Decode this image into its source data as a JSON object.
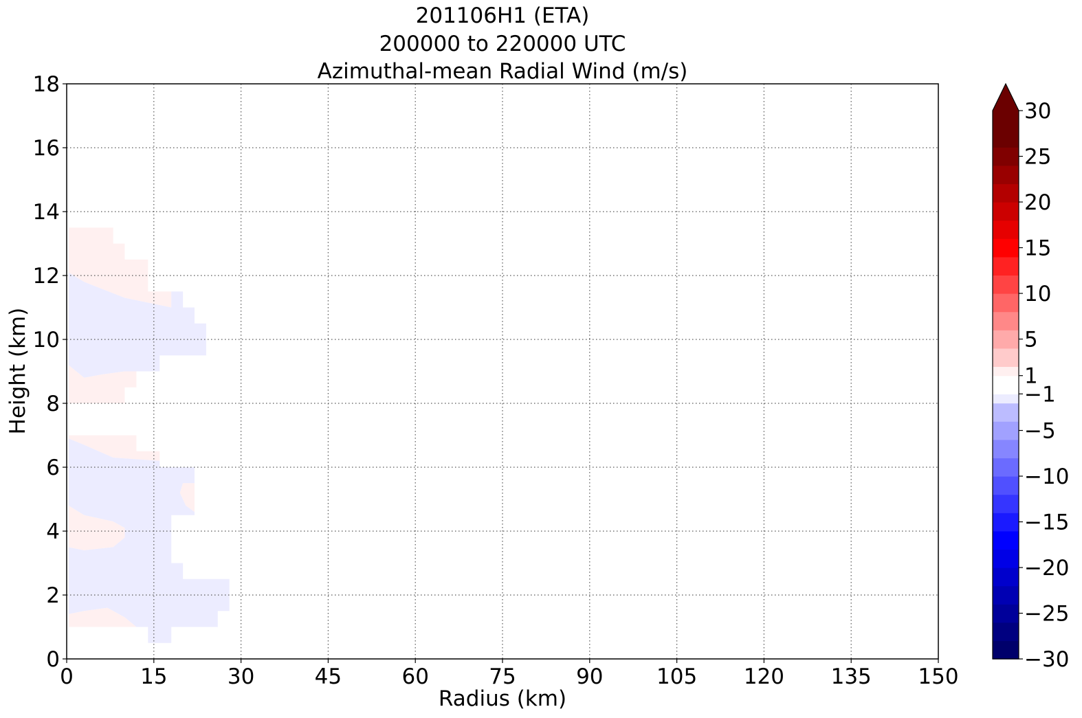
{
  "chart_data": {
    "type": "heatmap",
    "title_lines": [
      "201106H1 (ETA)",
      "200000 to 220000 UTC",
      "Azimuthal-mean Radial Wind (m/s)"
    ],
    "xlabel": "Radius (km)",
    "ylabel": "Height (km)",
    "xlim": [
      0,
      150
    ],
    "ylim": [
      0,
      18
    ],
    "xticks": [
      0,
      15,
      30,
      45,
      60,
      75,
      90,
      105,
      120,
      135,
      150
    ],
    "yticks": [
      0,
      2,
      4,
      6,
      8,
      10,
      12,
      14,
      16,
      18
    ],
    "grid": true,
    "colorbar": {
      "label": "",
      "range": [
        -30,
        30
      ],
      "levels": [
        -30,
        -28,
        -26,
        -24,
        -22,
        -20,
        -18,
        -16,
        -14,
        -12,
        -10,
        -8,
        -6,
        -4,
        -2,
        -1,
        1,
        2,
        4,
        6,
        8,
        10,
        12,
        14,
        16,
        18,
        20,
        22,
        24,
        26,
        28,
        30
      ],
      "colors": [
        "#00006b",
        "#000080",
        "#00009a",
        "#0000b3",
        "#0000cc",
        "#0000e6",
        "#0000ff",
        "#1a1aff",
        "#3535ff",
        "#5050ff",
        "#6b6bff",
        "#8686ff",
        "#a1a1ff",
        "#bcbcff",
        "#ececff",
        "#ffffff",
        "#fff0f0",
        "#ffcbcb",
        "#ffaaaa",
        "#ff8888",
        "#ff6666",
        "#ff4444",
        "#ff2222",
        "#ff0000",
        "#e60000",
        "#cc0000",
        "#b30000",
        "#990000",
        "#800000",
        "#6b0000",
        "#6b0000"
      ],
      "tick_values": [
        30,
        25,
        20,
        15,
        10,
        5,
        1,
        -1,
        -5,
        -10,
        -15,
        -20,
        -25,
        -30
      ],
      "tick_labels": [
        "30",
        "25",
        "20",
        "15",
        "10",
        "5",
        "1",
        "−1",
        "−5",
        "−10",
        "−15",
        "−20",
        "−25",
        "−30"
      ],
      "extend": "max"
    },
    "regions": [
      {
        "name": "weak outflow (1 to 2 m/s), upper level",
        "value_range": [
          1,
          2
        ],
        "color": "#fff0f0",
        "polygon": [
          [
            0.3,
            13.5
          ],
          [
            8,
            13.5
          ],
          [
            8,
            13
          ],
          [
            10,
            13
          ],
          [
            10,
            12.5
          ],
          [
            14,
            12.5
          ],
          [
            14,
            11.5
          ],
          [
            18,
            11.5
          ],
          [
            18,
            11
          ],
          [
            10,
            11.3
          ],
          [
            3,
            11.8
          ],
          [
            0.3,
            12.1
          ]
        ]
      },
      {
        "name": "weak inflow (-2 to -1 m/s), upper level",
        "value_range": [
          -2,
          -1
        ],
        "color": "#ececff",
        "polygon": [
          [
            0.3,
            12.1
          ],
          [
            3,
            11.8
          ],
          [
            10,
            11.3
          ],
          [
            18,
            11
          ],
          [
            18,
            11.5
          ],
          [
            20,
            11.5
          ],
          [
            20,
            11
          ],
          [
            22,
            11
          ],
          [
            22,
            10.5
          ],
          [
            24,
            10.5
          ],
          [
            24,
            9.5
          ],
          [
            22,
            9.5
          ],
          [
            22,
            9.5
          ],
          [
            16,
            9.5
          ],
          [
            16,
            9
          ],
          [
            10,
            9
          ],
          [
            6,
            8.9
          ],
          [
            3,
            8.8
          ],
          [
            0.3,
            9.2
          ]
        ]
      },
      {
        "name": "weak outflow (1 to 2 m/s), mid-upper level",
        "value_range": [
          1,
          2
        ],
        "color": "#fff0f0",
        "polygon": [
          [
            0.3,
            9.2
          ],
          [
            3,
            8.8
          ],
          [
            6,
            8.9
          ],
          [
            10,
            9
          ],
          [
            16,
            9
          ],
          [
            16,
            9
          ],
          [
            12,
            9
          ],
          [
            12,
            8.5
          ],
          [
            10,
            8.5
          ],
          [
            10,
            8
          ],
          [
            0.3,
            8
          ]
        ]
      },
      {
        "name": "weak outflow (1 to 2 m/s), mid level",
        "value_range": [
          1,
          2
        ],
        "color": "#fff0f0",
        "polygon": [
          [
            0.3,
            7
          ],
          [
            12,
            7
          ],
          [
            12,
            6.5
          ],
          [
            16,
            6.5
          ],
          [
            16,
            6.2
          ],
          [
            8,
            6.3
          ],
          [
            3,
            6.7
          ],
          [
            0.3,
            6.9
          ]
        ]
      },
      {
        "name": "weak inflow (-2 to -1 m/s), lower-mid level",
        "value_range": [
          -2,
          -1
        ],
        "color": "#ececff",
        "polygon": [
          [
            0.3,
            6.9
          ],
          [
            3,
            6.7
          ],
          [
            8,
            6.3
          ],
          [
            16,
            6.2
          ],
          [
            16,
            6
          ],
          [
            22,
            6
          ],
          [
            22,
            5.5
          ],
          [
            20,
            5.5
          ],
          [
            19.5,
            5.2
          ],
          [
            20.5,
            4.8
          ],
          [
            22,
            4.6
          ],
          [
            22,
            4.5
          ],
          [
            18,
            4.5
          ],
          [
            18,
            3
          ],
          [
            20,
            3
          ],
          [
            20,
            2.5
          ],
          [
            28,
            2.5
          ],
          [
            28,
            1.5
          ],
          [
            26,
            1.5
          ],
          [
            26,
            1
          ],
          [
            18,
            1
          ],
          [
            18,
            0.5
          ],
          [
            14,
            0.5
          ],
          [
            14,
            1
          ],
          [
            12,
            1
          ],
          [
            10,
            1.3
          ],
          [
            7,
            1.6
          ],
          [
            3,
            1.5
          ],
          [
            0.3,
            1.4
          ],
          [
            0.3,
            3.5
          ],
          [
            3,
            3.4
          ],
          [
            8,
            3.5
          ],
          [
            10,
            3.8
          ],
          [
            10,
            4.1
          ],
          [
            8,
            4.3
          ],
          [
            3,
            4.5
          ],
          [
            0.3,
            4.8
          ]
        ]
      },
      {
        "name": "weak outflow (1 to 2 m/s), near 5 km",
        "value_range": [
          1,
          2
        ],
        "color": "#fff0f0",
        "polygon": [
          [
            22,
            5.5
          ],
          [
            20,
            5.5
          ],
          [
            19.5,
            5.2
          ],
          [
            20.5,
            4.8
          ],
          [
            22,
            4.6
          ]
        ]
      },
      {
        "name": "weak outflow (1 to 2 m/s), near 4 km",
        "value_range": [
          1,
          2
        ],
        "color": "#fff0f0",
        "polygon": [
          [
            0.3,
            4.8
          ],
          [
            3,
            4.5
          ],
          [
            8,
            4.3
          ],
          [
            10,
            4.1
          ],
          [
            10,
            3.8
          ],
          [
            8,
            3.5
          ],
          [
            3,
            3.4
          ],
          [
            0.3,
            3.5
          ]
        ]
      },
      {
        "name": "weak outflow (1 to 2 m/s), near surface",
        "value_range": [
          1,
          2
        ],
        "color": "#fff0f0",
        "polygon": [
          [
            0.3,
            1.4
          ],
          [
            3,
            1.5
          ],
          [
            7,
            1.6
          ],
          [
            10,
            1.3
          ],
          [
            12,
            1
          ],
          [
            0.3,
            1
          ]
        ]
      }
    ]
  }
}
